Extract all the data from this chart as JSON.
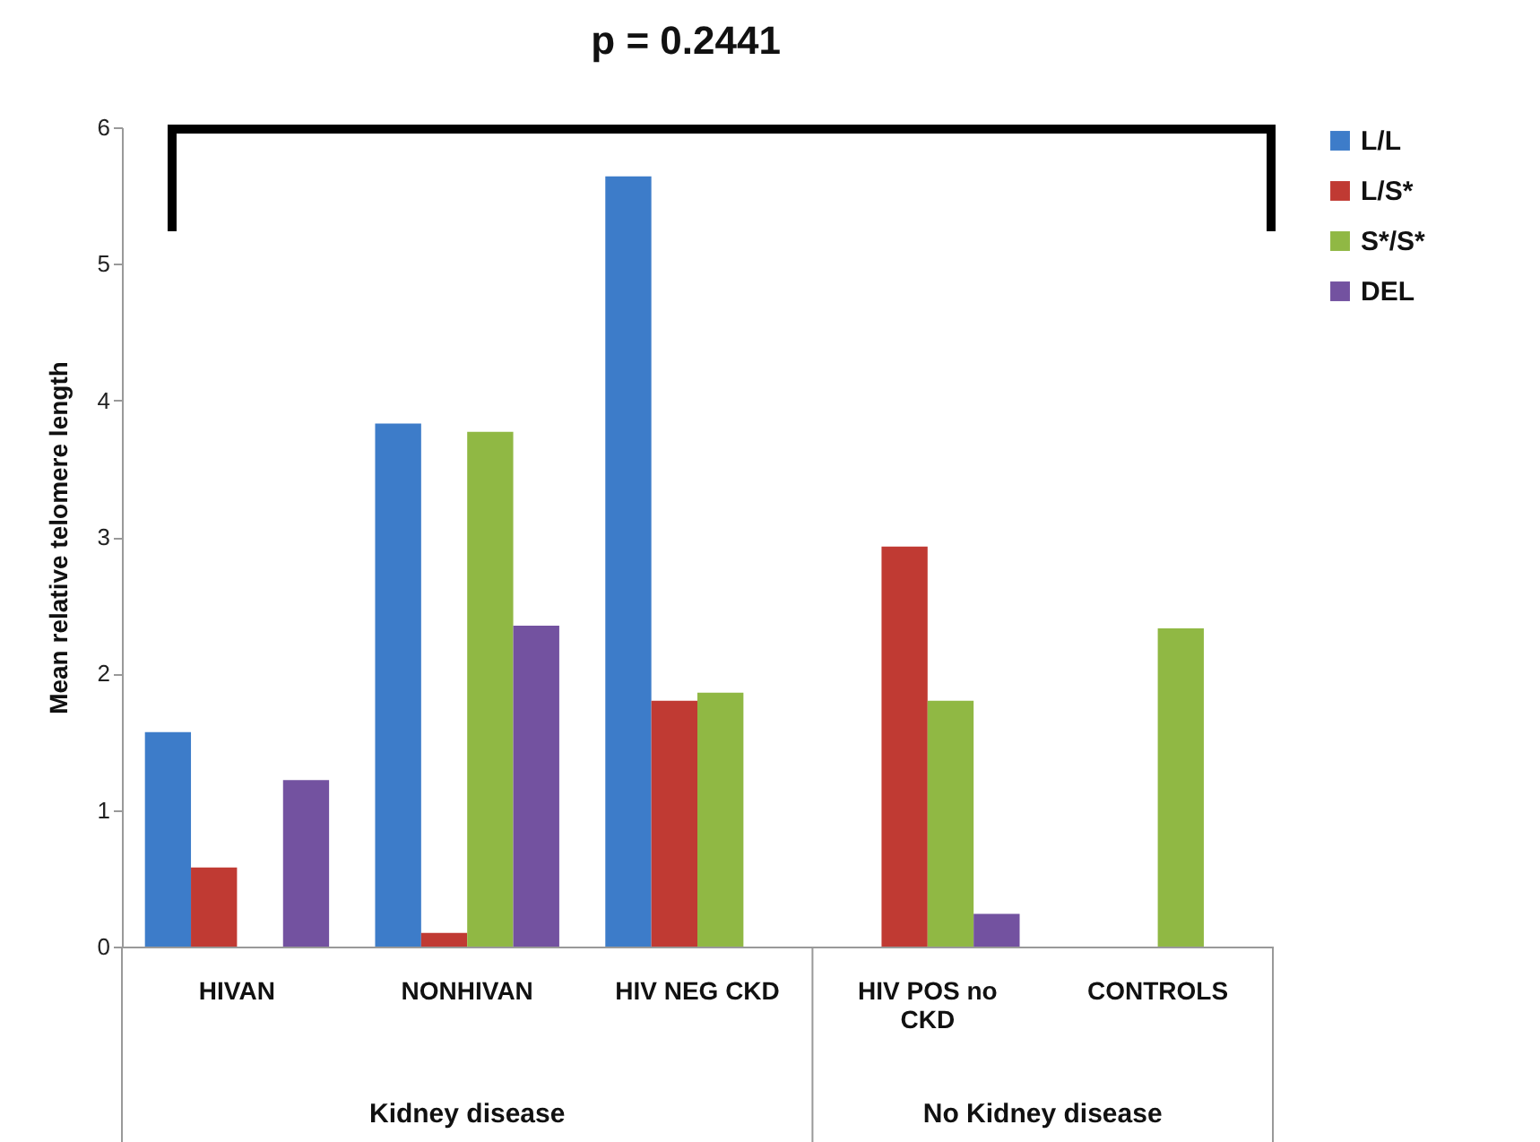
{
  "chart_data": {
    "type": "bar",
    "ylabel": "Mean relative telomere length",
    "categories": [
      "HIVAN",
      "NONHIVAN",
      "HIV NEG CKD",
      "HIV POS no CKD",
      "CONTROLS"
    ],
    "series": [
      {
        "name": "L/L",
        "color": "#3d7cc9",
        "values": [
          1.57,
          3.83,
          5.64,
          null,
          null
        ]
      },
      {
        "name": "L/S*",
        "color": "#c03a33",
        "values": [
          0.58,
          0.1,
          1.8,
          2.93,
          null
        ]
      },
      {
        "name": "S*/S*",
        "color": "#90b844",
        "values": [
          null,
          3.77,
          1.86,
          1.8,
          2.33
        ]
      },
      {
        "name": "DEL",
        "color": "#7352a0",
        "values": [
          1.22,
          2.35,
          null,
          0.24,
          null
        ]
      }
    ],
    "ylim": [
      0,
      6
    ],
    "yticks": [
      0,
      1,
      2,
      3,
      4,
      5,
      6
    ],
    "grid": false,
    "legend": "right",
    "annotations": [
      "p = 0.2441",
      "Kidney disease",
      "No Kidney disease"
    ]
  }
}
